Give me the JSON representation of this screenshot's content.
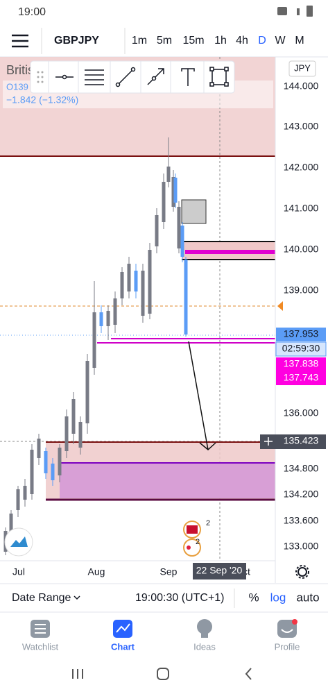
{
  "status_bar": {
    "time": "19:00"
  },
  "toolbar": {
    "symbol": "GBPJPY",
    "intervals": [
      "1m",
      "5m",
      "15m",
      "1h",
      "4h",
      "D",
      "W",
      "M"
    ]
  },
  "legend": {
    "name": "Britis",
    "open": "O139",
    "change": "−1.842 (−1.32%)"
  },
  "price_axis": {
    "currency": "JPY",
    "labels": [
      "144.000",
      "143.000",
      "142.000",
      "141.000",
      "140.000",
      "139.000",
      "136.000",
      "134.800",
      "134.200",
      "133.600",
      "133.000"
    ]
  },
  "price_tags": {
    "last": "137.953",
    "countdown": "02:59:30",
    "line_a": "137.838",
    "line_b": "137.743",
    "crosshair": "135.423"
  },
  "time_axis": {
    "labels": [
      "Jul",
      "Aug",
      "Sep",
      "Oct"
    ],
    "crosshair": "22 Sep '20"
  },
  "events": {
    "badges": [
      "2",
      "2"
    ]
  },
  "bottom_bar": {
    "date_range": "Date Range",
    "clock": "19:00:30 (UTC+1)",
    "percent": "%",
    "log": "log",
    "auto": "auto"
  },
  "nav": {
    "items": [
      "Watchlist",
      "Chart",
      "Ideas",
      "Profile"
    ]
  }
}
